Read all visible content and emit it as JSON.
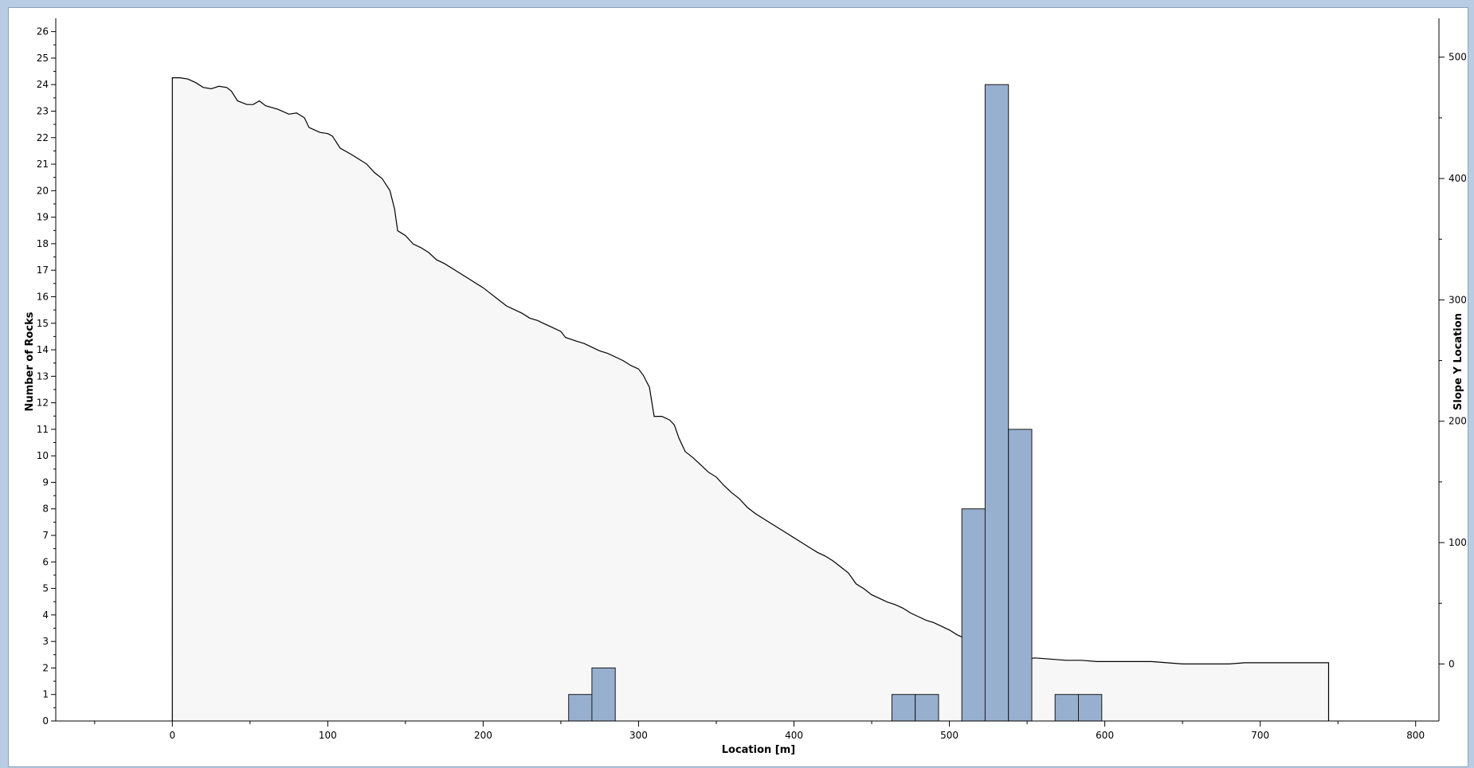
{
  "chart_data": {
    "type": "bar",
    "title": "",
    "xlabel": "Location [m]",
    "ylabel": "Number of Rocks",
    "y2label": "Slope Y Location",
    "xlim": [
      -75,
      815
    ],
    "ylim": [
      0,
      26.5
    ],
    "y2lim": [
      -47,
      532
    ],
    "x_ticks": [
      0,
      100,
      200,
      300,
      400,
      500,
      600,
      700,
      800
    ],
    "y_ticks": [
      0,
      1,
      2,
      3,
      4,
      5,
      6,
      7,
      8,
      9,
      10,
      11,
      12,
      13,
      14,
      15,
      16,
      17,
      18,
      19,
      20,
      21,
      22,
      23,
      24,
      25,
      26
    ],
    "y2_ticks": [
      0,
      100,
      200,
      300,
      400,
      500
    ],
    "grid": false,
    "bar_width": 15,
    "bars": [
      {
        "x": 262.5,
        "value": 1
      },
      {
        "x": 277.5,
        "value": 2
      },
      {
        "x": 470.5,
        "value": 1
      },
      {
        "x": 485.5,
        "value": 1
      },
      {
        "x": 515.5,
        "value": 8
      },
      {
        "x": 530.5,
        "value": 24
      },
      {
        "x": 545.5,
        "value": 11
      },
      {
        "x": 575.5,
        "value": 1
      },
      {
        "x": 590.5,
        "value": 1
      }
    ],
    "bar_color": "#98b0cf",
    "slope_fill": "#f7f7f7",
    "slope_profile": [
      [
        0,
        483
      ],
      [
        5,
        483
      ],
      [
        10,
        482
      ],
      [
        15,
        479
      ],
      [
        20,
        475
      ],
      [
        25,
        474
      ],
      [
        30,
        476
      ],
      [
        35,
        475
      ],
      [
        38,
        472
      ],
      [
        42,
        464
      ],
      [
        48,
        461
      ],
      [
        52,
        461
      ],
      [
        56,
        464
      ],
      [
        60,
        460
      ],
      [
        68,
        457
      ],
      [
        75,
        453
      ],
      [
        80,
        454
      ],
      [
        85,
        450
      ],
      [
        88,
        442
      ],
      [
        95,
        438
      ],
      [
        100,
        437
      ],
      [
        103,
        435
      ],
      [
        108,
        425
      ],
      [
        115,
        420
      ],
      [
        120,
        416
      ],
      [
        125,
        412
      ],
      [
        130,
        405
      ],
      [
        135,
        400
      ],
      [
        140,
        390
      ],
      [
        143,
        375
      ],
      [
        145,
        357
      ],
      [
        150,
        353
      ],
      [
        155,
        346
      ],
      [
        160,
        343
      ],
      [
        165,
        339
      ],
      [
        170,
        333
      ],
      [
        175,
        330
      ],
      [
        180,
        326
      ],
      [
        185,
        322
      ],
      [
        190,
        318
      ],
      [
        200,
        310
      ],
      [
        205,
        305
      ],
      [
        210,
        300
      ],
      [
        215,
        295
      ],
      [
        220,
        292
      ],
      [
        225,
        289
      ],
      [
        230,
        285
      ],
      [
        235,
        283
      ],
      [
        240,
        280
      ],
      [
        245,
        277
      ],
      [
        250,
        274
      ],
      [
        253,
        269
      ],
      [
        260,
        266
      ],
      [
        265,
        264
      ],
      [
        270,
        261
      ],
      [
        275,
        258
      ],
      [
        280,
        256
      ],
      [
        285,
        253
      ],
      [
        290,
        250
      ],
      [
        295,
        246
      ],
      [
        300,
        243
      ],
      [
        303,
        238
      ],
      [
        307,
        228
      ],
      [
        310,
        204
      ],
      [
        315,
        204
      ],
      [
        320,
        201
      ],
      [
        323,
        197
      ],
      [
        326,
        186
      ],
      [
        330,
        175
      ],
      [
        335,
        170
      ],
      [
        340,
        164
      ],
      [
        345,
        158
      ],
      [
        350,
        154
      ],
      [
        355,
        147
      ],
      [
        360,
        141
      ],
      [
        365,
        136
      ],
      [
        370,
        129
      ],
      [
        375,
        124
      ],
      [
        380,
        120
      ],
      [
        385,
        116
      ],
      [
        390,
        112
      ],
      [
        395,
        108
      ],
      [
        400,
        104
      ],
      [
        405,
        100
      ],
      [
        410,
        96
      ],
      [
        415,
        92
      ],
      [
        420,
        89
      ],
      [
        425,
        85
      ],
      [
        430,
        80
      ],
      [
        435,
        75
      ],
      [
        440,
        66
      ],
      [
        445,
        62
      ],
      [
        450,
        57
      ],
      [
        455,
        54
      ],
      [
        460,
        51
      ],
      [
        465,
        49
      ],
      [
        470,
        46
      ],
      [
        475,
        42
      ],
      [
        480,
        39
      ],
      [
        485,
        36
      ],
      [
        490,
        34
      ],
      [
        495,
        31
      ],
      [
        500,
        28
      ],
      [
        505,
        24
      ],
      [
        510,
        21
      ],
      [
        515,
        18
      ],
      [
        520,
        14
      ],
      [
        525,
        11
      ],
      [
        530,
        8
      ],
      [
        535,
        5
      ],
      [
        540,
        3
      ],
      [
        550,
        4
      ],
      [
        555,
        5
      ],
      [
        565,
        4
      ],
      [
        575,
        3
      ],
      [
        585,
        3
      ],
      [
        595,
        2
      ],
      [
        610,
        2
      ],
      [
        630,
        2
      ],
      [
        640,
        1
      ],
      [
        650,
        0
      ],
      [
        665,
        0
      ],
      [
        680,
        0
      ],
      [
        690,
        1
      ],
      [
        700,
        1
      ],
      [
        720,
        1
      ],
      [
        730,
        1
      ],
      [
        744,
        1
      ]
    ]
  }
}
